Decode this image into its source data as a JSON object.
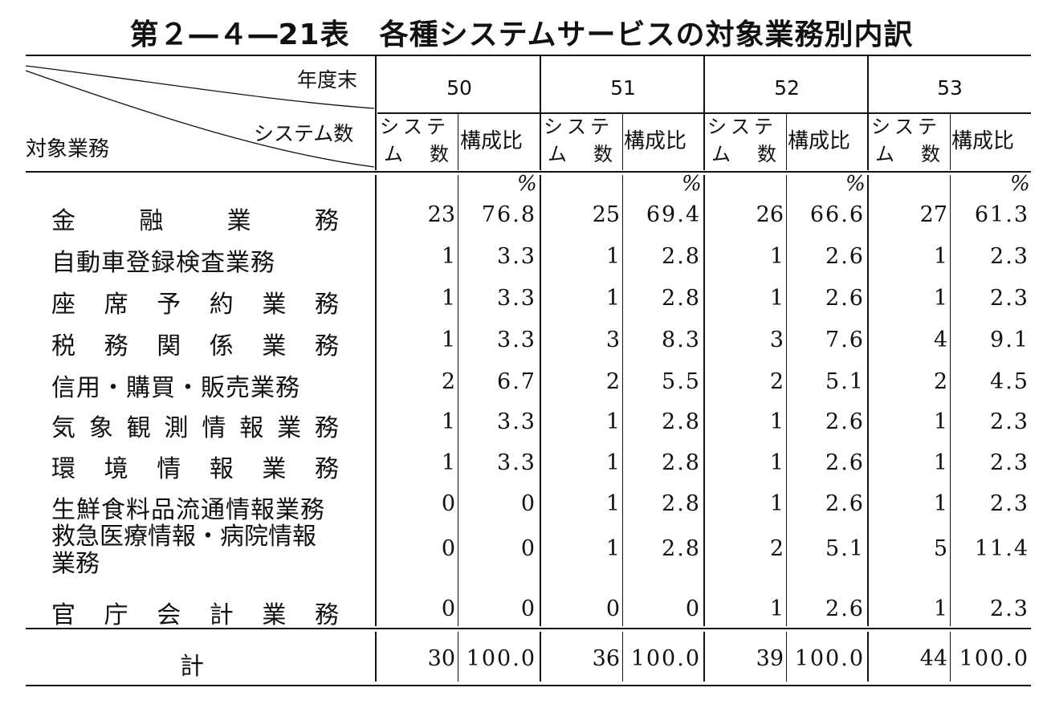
{
  "title": "第２―４―21表　各種システムサービスの対象業務別内訳",
  "header": {
    "year_label": "年度末",
    "count_label": "システム数",
    "row_label": "対象業務",
    "years": [
      "50",
      "51",
      "52",
      "53"
    ],
    "sub_count_top": "システ",
    "sub_count_bottom_left": "ム",
    "sub_count_bottom_right": "数",
    "sub_ratio": "構成比",
    "percent_sign": "%"
  },
  "rows": [
    {
      "label": "金　融　業　務",
      "chars": [
        "金",
        "融",
        "業",
        "務"
      ],
      "values": [
        [
          "23",
          "76.8"
        ],
        [
          "25",
          "69.4"
        ],
        [
          "26",
          "66.6"
        ],
        [
          "27",
          "61.3"
        ]
      ]
    },
    {
      "label": "自動車登録検査業務",
      "values": [
        [
          "1",
          "3.3"
        ],
        [
          "1",
          "2.8"
        ],
        [
          "1",
          "2.6"
        ],
        [
          "1",
          "2.3"
        ]
      ]
    },
    {
      "label": "座　席　予　約　業　務",
      "chars": [
        "座",
        "席",
        "予",
        "約",
        "業",
        "務"
      ],
      "values": [
        [
          "1",
          "3.3"
        ],
        [
          "1",
          "2.8"
        ],
        [
          "1",
          "2.6"
        ],
        [
          "1",
          "2.3"
        ]
      ]
    },
    {
      "label": "税　務　関　係　業　務",
      "chars": [
        "税",
        "務",
        "関",
        "係",
        "業",
        "務"
      ],
      "values": [
        [
          "1",
          "3.3"
        ],
        [
          "3",
          "8.3"
        ],
        [
          "3",
          "7.6"
        ],
        [
          "4",
          "9.1"
        ]
      ]
    },
    {
      "label": "信用・購買・販売業務",
      "values": [
        [
          "2",
          "6.7"
        ],
        [
          "2",
          "5.5"
        ],
        [
          "2",
          "5.1"
        ],
        [
          "2",
          "4.5"
        ]
      ]
    },
    {
      "label": "気　象　観　測　情　報　業　務",
      "chars": [
        "気",
        "象",
        "観",
        "測",
        "情",
        "報",
        "業",
        "務"
      ],
      "values": [
        [
          "1",
          "3.3"
        ],
        [
          "1",
          "2.8"
        ],
        [
          "1",
          "2.6"
        ],
        [
          "1",
          "2.3"
        ]
      ]
    },
    {
      "label": "環　境　情　報　業　務",
      "chars": [
        "環",
        "境",
        "情",
        "報",
        "業",
        "務"
      ],
      "values": [
        [
          "1",
          "3.3"
        ],
        [
          "1",
          "2.8"
        ],
        [
          "1",
          "2.6"
        ],
        [
          "1",
          "2.3"
        ]
      ]
    },
    {
      "label": "生鮮食料品流通情報業務",
      "values": [
        [
          "0",
          "0"
        ],
        [
          "1",
          "2.8"
        ],
        [
          "1",
          "2.6"
        ],
        [
          "1",
          "2.3"
        ]
      ]
    },
    {
      "label_line1": "救急医療情報・病院情報",
      "label_line2": "業務",
      "values": [
        [
          "0",
          "0"
        ],
        [
          "1",
          "2.8"
        ],
        [
          "2",
          "5.1"
        ],
        [
          "5",
          "11.4"
        ]
      ]
    },
    {
      "label": "官　庁　会　計　業　務",
      "chars": [
        "官",
        "庁",
        "会",
        "計",
        "業",
        "務"
      ],
      "values": [
        [
          "0",
          "0"
        ],
        [
          "0",
          "0"
        ],
        [
          "1",
          "2.6"
        ],
        [
          "1",
          "2.3"
        ]
      ]
    }
  ],
  "total": {
    "label": "計",
    "values": [
      [
        "30",
        "100.0"
      ],
      [
        "36",
        "100.0"
      ],
      [
        "39",
        "100.0"
      ],
      [
        "44",
        "100.0"
      ]
    ]
  }
}
